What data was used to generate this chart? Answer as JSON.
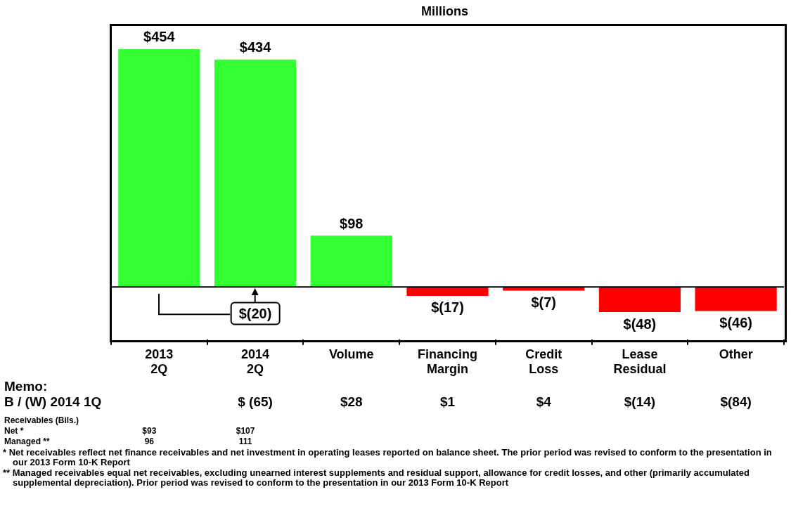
{
  "chart_data": {
    "type": "bar",
    "title": "Millions",
    "categories": [
      "2013 2Q",
      "2014 2Q",
      "Volume",
      "Financing Margin",
      "Credit Loss",
      "Lease Residual",
      "Other"
    ],
    "values": [
      454,
      434,
      98,
      -17,
      -7,
      -48,
      -46
    ],
    "colors": [
      "#33ff33",
      "#33ff33",
      "#33ff33",
      "#ff0000",
      "#ff0000",
      "#ff0000",
      "#ff0000"
    ],
    "value_labels": [
      "$454",
      "$434",
      "$98",
      "$(17)",
      "$(7)",
      "$(48)",
      "$(46)"
    ],
    "ref_lines": [
      {
        "axis": "y",
        "value": 0
      }
    ],
    "tick_labels": "x",
    "legend": false,
    "annotations": [
      {
        "text": "$(20)",
        "x": "2014 2Q"
      },
      "Memo:",
      "B / (W) 2014 1Q",
      "$ (65)",
      "$28",
      "$1",
      "$4",
      "$(14)",
      "$(84)",
      "Receivables (Bils.)",
      "Net *",
      "$93",
      "$107",
      "Managed **",
      "96",
      "111",
      "* Net receivables reflect net finance receivables and net investment in operating leases reported on balance sheet. The prior period was revised to conform to the presentation in our 2013 Form 10-K Report",
      "** Managed receivables equal net receivables, excluding unearned interest supplements and residual support, allowance for credit losses, and other (primarily accumulated supplemental depreciation). Prior period was revised to conform to the presentation in our 2013 Form 10-K Report"
    ]
  }
}
